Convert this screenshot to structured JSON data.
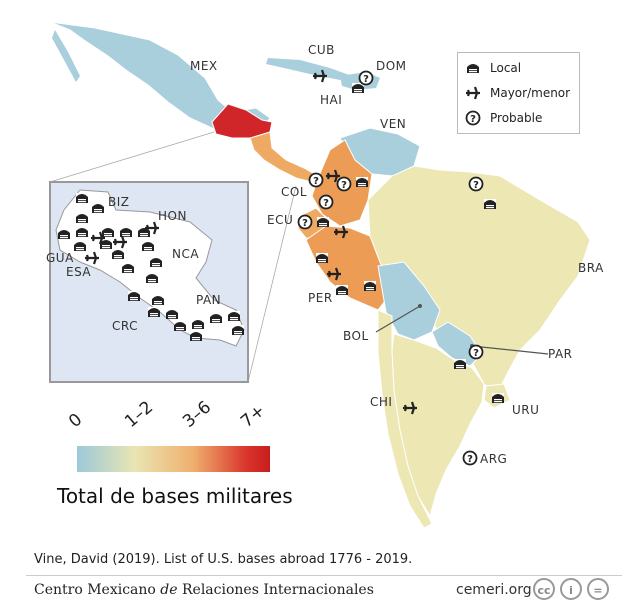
{
  "countries": {
    "mex": "MEX",
    "cub": "CUB",
    "dom": "DOM",
    "hai": "HAI",
    "ven": "VEN",
    "col": "COL",
    "ecu": "ECU",
    "per": "PER",
    "bol": "BOL",
    "bra": "BRA",
    "par": "PAR",
    "chi": "CHI",
    "uru": "URU",
    "arg": "ARG",
    "biz": "BIZ",
    "hon": "HON",
    "gua": "GUA",
    "esa": "ESA",
    "nca": "NCA",
    "pan": "PAN",
    "crc": "CRC"
  },
  "legend": {
    "local": "Local",
    "major_minor": "Mayor/menor",
    "probable": "Probable"
  },
  "scale": {
    "title": "Total de bases militares",
    "ticks": [
      "0",
      "1–2",
      "3–6",
      "7+"
    ],
    "colors": [
      "#9cc9d9",
      "#e9e5b3",
      "#efb06e",
      "#c81e1e"
    ]
  },
  "icons": [
    "base-local-icon",
    "airplane-icon",
    "question-circle-icon"
  ],
  "source": "Vine, David (2019). List of U.S. bases abroad 1776 - 2019.",
  "footer": {
    "org_pre": "Centro Mexicano ",
    "org_em": "de",
    "org_post": " Relaciones Internacionales",
    "site": "cemeri.org",
    "license_icons": [
      "cc",
      "i",
      "="
    ]
  }
}
